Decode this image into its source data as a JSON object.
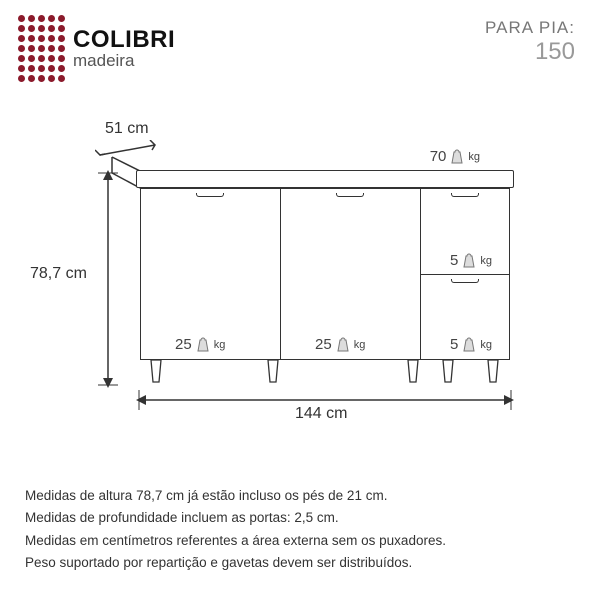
{
  "logo": {
    "brand": "COLIBRI",
    "sub": "madeira",
    "dot_color": "#8b1a2b",
    "brand_color": "#111111",
    "sub_color": "#555555"
  },
  "header_right": {
    "label": "PARA PIA:",
    "value": "150",
    "label_color": "#777777",
    "value_color": "#999999"
  },
  "diagram": {
    "type": "technical-drawing",
    "stroke": "#333333",
    "background": "#ffffff",
    "dimensions": {
      "depth": {
        "value": "51 cm"
      },
      "height": {
        "value": "78,7 cm"
      },
      "width": {
        "value": "144 cm"
      }
    },
    "weights": {
      "top": {
        "num": "70",
        "unit": "kg"
      },
      "door1": {
        "num": "25",
        "unit": "kg"
      },
      "door2": {
        "num": "25",
        "unit": "kg"
      },
      "drawer1": {
        "num": "5",
        "unit": "kg"
      },
      "drawer2": {
        "num": "5",
        "unit": "kg"
      }
    },
    "leg_count": 5
  },
  "notes": {
    "line1": "Medidas de altura 78,7 cm já estão incluso os pés de 21 cm.",
    "line2": "Medidas de profundidade incluem as portas: 2,5 cm.",
    "line3": "Medidas em centímetros referentes a área externa sem os puxadores.",
    "line4": "Peso suportado por repartição e gavetas devem ser distribuídos."
  }
}
